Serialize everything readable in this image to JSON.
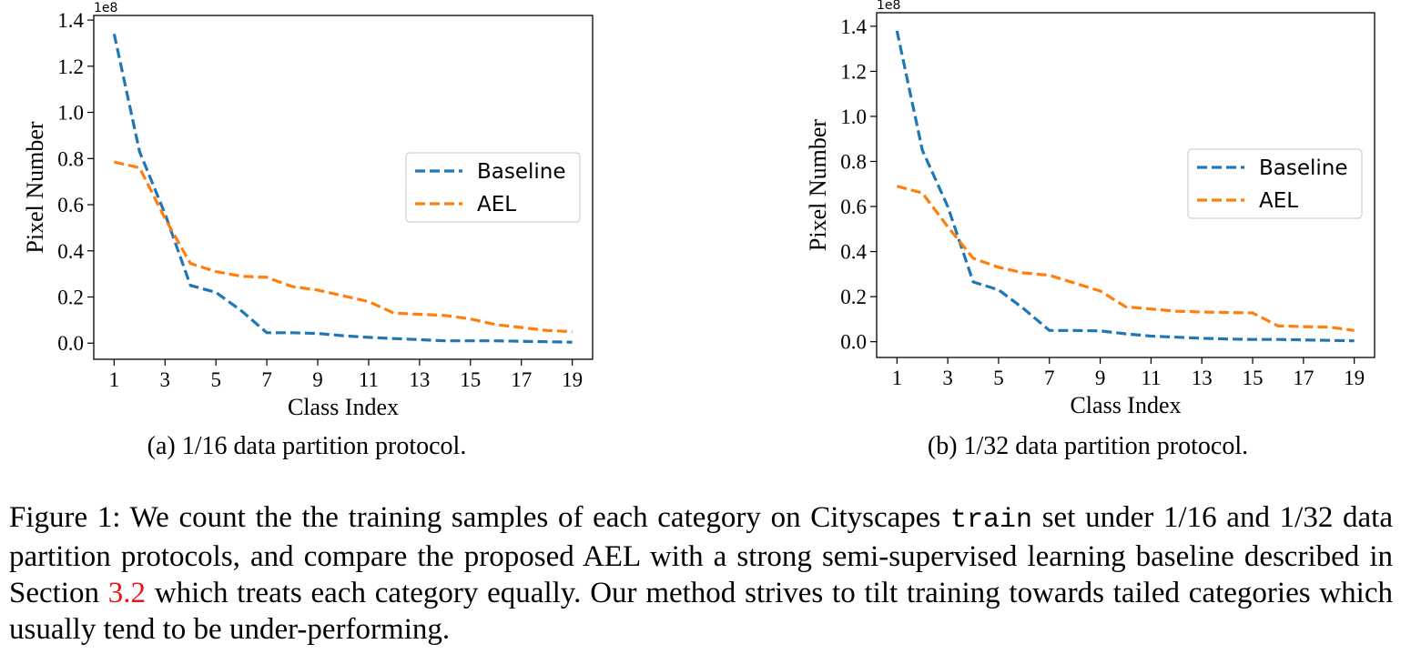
{
  "chart_data": [
    {
      "type": "line",
      "subcaption": "(a)  1/16 data partition protocol.",
      "xlabel": "Class Index",
      "ylabel": "Pixel Number",
      "y_multiplier": "1e8",
      "xlim": [
        0.2,
        19.8
      ],
      "ylim": [
        -0.07,
        1.42
      ],
      "x_ticks": [
        1,
        3,
        5,
        7,
        9,
        11,
        13,
        15,
        17,
        19
      ],
      "y_ticks": [
        0.0,
        0.2,
        0.4,
        0.6,
        0.8,
        1.0,
        1.2,
        1.4
      ],
      "y_tick_labels": [
        "0.0",
        "0.2",
        "0.4",
        "0.6",
        "0.8",
        "1.0",
        "1.2",
        "1.4"
      ],
      "legend_position": "center-right",
      "x": [
        1,
        2,
        3,
        4,
        5,
        6,
        7,
        8,
        9,
        10,
        11,
        12,
        13,
        14,
        15,
        16,
        17,
        18,
        19
      ],
      "series": [
        {
          "name": "Baseline",
          "color": "#1f77b4",
          "values": [
            1.34,
            0.83,
            0.56,
            0.25,
            0.22,
            0.14,
            0.045,
            0.045,
            0.042,
            0.032,
            0.025,
            0.02,
            0.015,
            0.01,
            0.01,
            0.01,
            0.008,
            0.006,
            0.004
          ]
        },
        {
          "name": "AEL",
          "color": "#ff7f0e",
          "values": [
            0.785,
            0.76,
            0.54,
            0.345,
            0.31,
            0.29,
            0.285,
            0.245,
            0.23,
            0.205,
            0.18,
            0.13,
            0.125,
            0.12,
            0.105,
            0.08,
            0.068,
            0.055,
            0.05
          ]
        }
      ]
    },
    {
      "type": "line",
      "subcaption": "(b)  1/32 data partition protocol.",
      "xlabel": "Class Index",
      "ylabel": "Pixel Number",
      "y_multiplier": "1e8",
      "xlim": [
        0.2,
        19.8
      ],
      "ylim": [
        -0.07,
        1.46
      ],
      "x_ticks": [
        1,
        3,
        5,
        7,
        9,
        11,
        13,
        15,
        17,
        19
      ],
      "y_ticks": [
        0.0,
        0.2,
        0.4,
        0.6,
        0.8,
        1.0,
        1.2,
        1.4
      ],
      "y_tick_labels": [
        "0.0",
        "0.2",
        "0.4",
        "0.6",
        "0.8",
        "1.0",
        "1.2",
        "1.4"
      ],
      "legend_position": "center-right",
      "x": [
        1,
        2,
        3,
        4,
        5,
        6,
        7,
        8,
        9,
        10,
        11,
        12,
        13,
        14,
        15,
        16,
        17,
        18,
        19
      ],
      "series": [
        {
          "name": "Baseline",
          "color": "#1f77b4",
          "values": [
            1.38,
            0.85,
            0.6,
            0.265,
            0.23,
            0.145,
            0.05,
            0.05,
            0.048,
            0.035,
            0.025,
            0.02,
            0.015,
            0.012,
            0.01,
            0.01,
            0.008,
            0.006,
            0.004
          ]
        },
        {
          "name": "AEL",
          "color": "#ff7f0e",
          "values": [
            0.69,
            0.66,
            0.51,
            0.37,
            0.33,
            0.305,
            0.295,
            0.26,
            0.225,
            0.155,
            0.145,
            0.135,
            0.132,
            0.13,
            0.128,
            0.07,
            0.067,
            0.065,
            0.05
          ]
        }
      ]
    }
  ],
  "caption": {
    "prefix": "Figure 1: We count the the training samples of each category on Cityscapes ",
    "code": "train",
    "middle": " set under 1/16 and 1/32 data partition protocols, and compare the proposed AEL with a strong semi-supervised learning baseline described in Section ",
    "ref": "3.2",
    "suffix": " which treats each category equally. Our method strives to tilt training towards tailed categories which usually tend to be under-performing."
  }
}
